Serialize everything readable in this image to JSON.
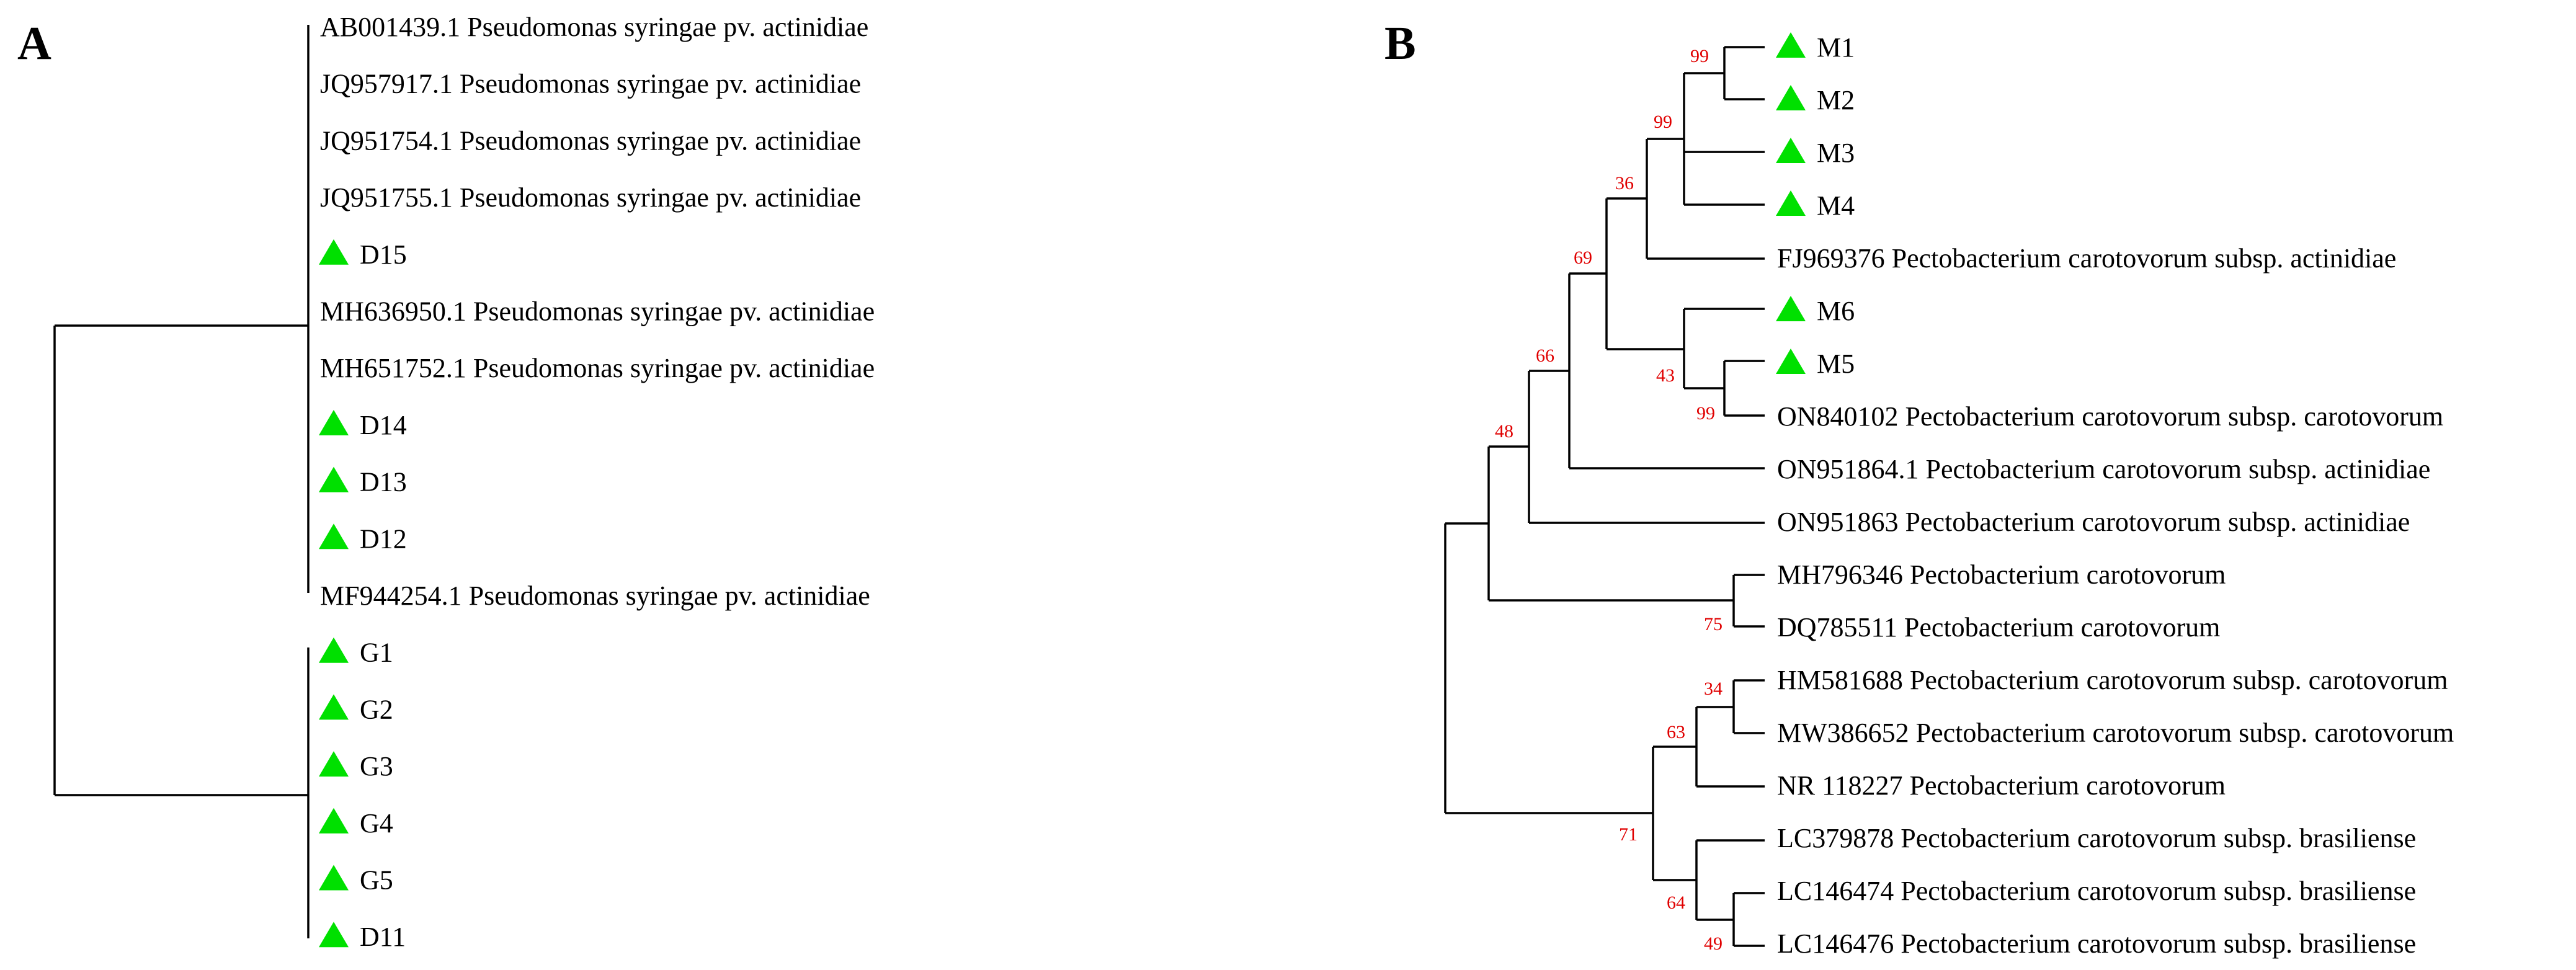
{
  "colors": {
    "marker": "#00e000",
    "bootstrap": "#e00000",
    "line": "#000000"
  },
  "panels": {
    "A": {
      "label": "A",
      "leaves": [
        {
          "text": "AB001439.1 Pseudomonas syringae pv. actinidiae",
          "marker": false
        },
        {
          "text": "JQ957917.1 Pseudomonas syringae pv. actinidiae",
          "marker": false
        },
        {
          "text": "JQ951754.1 Pseudomonas syringae pv. actinidiae",
          "marker": false
        },
        {
          "text": "JQ951755.1 Pseudomonas syringae pv. actinidiae",
          "marker": false
        },
        {
          "text": "D15",
          "marker": true
        },
        {
          "text": "MH636950.1 Pseudomonas syringae pv. actinidiae",
          "marker": false
        },
        {
          "text": "MH651752.1 Pseudomonas syringae pv. actinidiae",
          "marker": false
        },
        {
          "text": "D14",
          "marker": true
        },
        {
          "text": "D13",
          "marker": true
        },
        {
          "text": "D12",
          "marker": true
        },
        {
          "text": "MF944254.1 Pseudomonas syringae pv. actinidiae",
          "marker": false
        },
        {
          "text": "G1",
          "marker": true
        },
        {
          "text": "G2",
          "marker": true
        },
        {
          "text": "G3",
          "marker": true
        },
        {
          "text": "G4",
          "marker": true
        },
        {
          "text": "G5",
          "marker": true
        },
        {
          "text": "D11",
          "marker": true
        }
      ]
    },
    "B": {
      "label": "B",
      "leaves": [
        {
          "text": "M1",
          "marker": true
        },
        {
          "text": "M2",
          "marker": true
        },
        {
          "text": "M3",
          "marker": true
        },
        {
          "text": "M4",
          "marker": true
        },
        {
          "text": "FJ969376 Pectobacterium carotovorum subsp. actinidiae",
          "marker": false
        },
        {
          "text": "M6",
          "marker": true
        },
        {
          "text": "M5",
          "marker": true
        },
        {
          "text": "ON840102 Pectobacterium carotovorum subsp. carotovorum",
          "marker": false
        },
        {
          "text": "ON951864.1 Pectobacterium carotovorum subsp. actinidiae",
          "marker": false
        },
        {
          "text": "ON951863 Pectobacterium carotovorum subsp. actinidiae",
          "marker": false
        },
        {
          "text": "MH796346 Pectobacterium carotovorum",
          "marker": false
        },
        {
          "text": "DQ785511 Pectobacterium carotovorum",
          "marker": false
        },
        {
          "text": "HM581688 Pectobacterium carotovorum subsp. carotovorum",
          "marker": false
        },
        {
          "text": "MW386652 Pectobacterium carotovorum subsp. carotovorum",
          "marker": false
        },
        {
          "text": "NR 118227 Pectobacterium carotovorum",
          "marker": false
        },
        {
          "text": "LC379878 Pectobacterium carotovorum subsp. brasiliense",
          "marker": false
        },
        {
          "text": "LC146474 Pectobacterium carotovorum subsp. brasiliense",
          "marker": false
        },
        {
          "text": "LC146476 Pectobacterium carotovorum subsp. brasiliense",
          "marker": false
        }
      ],
      "bootstrap": [
        "99",
        "99",
        "36",
        "69",
        "66",
        "48",
        "43",
        "99",
        "75",
        "34",
        "63",
        "71",
        "64",
        "49"
      ]
    }
  }
}
